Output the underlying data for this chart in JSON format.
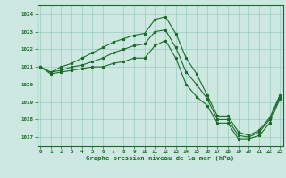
{
  "hours": [
    0,
    1,
    2,
    3,
    4,
    5,
    6,
    7,
    8,
    9,
    10,
    11,
    12,
    13,
    14,
    15,
    16,
    17,
    18,
    19,
    20,
    21,
    22,
    23
  ],
  "line_max": [
    1021.0,
    1020.7,
    1021.0,
    1021.2,
    1021.5,
    1021.8,
    1022.1,
    1022.4,
    1022.6,
    1022.8,
    1022.9,
    1023.7,
    1023.85,
    1022.9,
    1021.5,
    1020.6,
    1019.4,
    1018.2,
    1018.2,
    1017.3,
    1017.1,
    1017.4,
    1018.1,
    1019.4
  ],
  "line_mid": [
    1021.0,
    1020.7,
    1020.8,
    1021.0,
    1021.1,
    1021.3,
    1021.5,
    1021.8,
    1022.0,
    1022.2,
    1022.3,
    1023.0,
    1023.1,
    1022.1,
    1020.7,
    1020.0,
    1019.2,
    1018.0,
    1018.0,
    1017.1,
    1017.0,
    1017.3,
    1018.0,
    1019.3
  ],
  "line_min": [
    1021.0,
    1020.6,
    1020.7,
    1020.8,
    1020.9,
    1021.0,
    1021.0,
    1021.2,
    1021.3,
    1021.5,
    1021.5,
    1022.2,
    1022.5,
    1021.5,
    1020.0,
    1019.3,
    1018.8,
    1017.8,
    1017.8,
    1016.9,
    1016.9,
    1017.1,
    1017.8,
    1019.2
  ],
  "bg_color": "#cce8e0",
  "grid_color": "#99ccc0",
  "line_color": "#1a6b2a",
  "border_color": "#1a6b2a",
  "title": "Graphe pression niveau de la mer (hPa)",
  "ylim_min": 1016.5,
  "ylim_max": 1024.5,
  "yticks": [
    1017,
    1018,
    1019,
    1020,
    1021,
    1022,
    1023,
    1024
  ],
  "xticks": [
    0,
    1,
    2,
    3,
    4,
    5,
    6,
    7,
    8,
    9,
    10,
    11,
    12,
    13,
    14,
    15,
    16,
    17,
    18,
    19,
    20,
    21,
    22,
    23
  ]
}
